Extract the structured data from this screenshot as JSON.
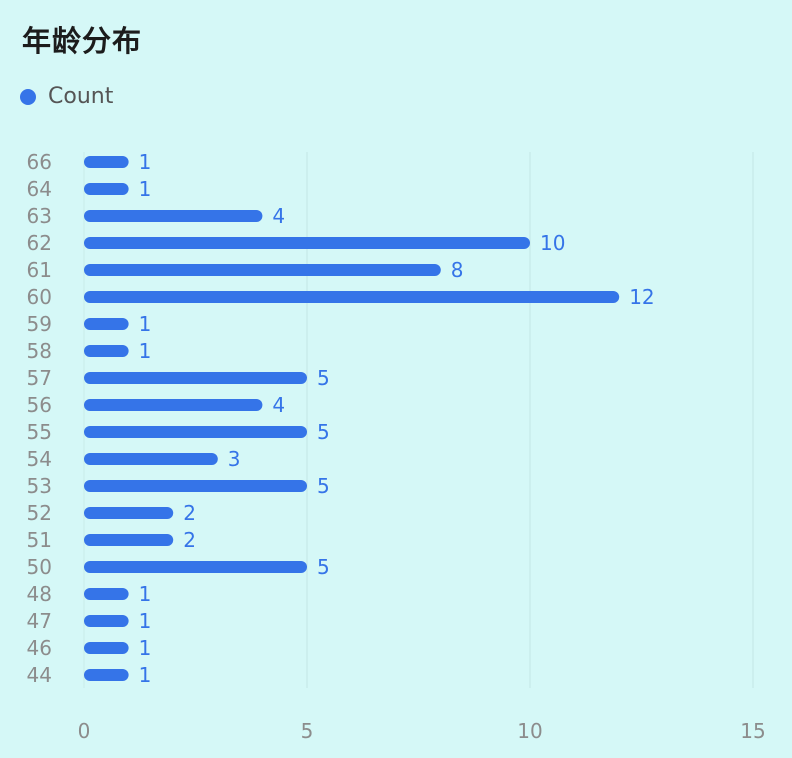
{
  "chart_data": {
    "type": "bar",
    "orientation": "horizontal",
    "title": "年龄分布",
    "categories": [
      "66",
      "64",
      "63",
      "62",
      "61",
      "60",
      "59",
      "58",
      "57",
      "56",
      "55",
      "54",
      "53",
      "52",
      "51",
      "50",
      "48",
      "47",
      "46",
      "44"
    ],
    "series": [
      {
        "name": "Count",
        "color": "#3574e8",
        "values": [
          1,
          1,
          4,
          10,
          8,
          12,
          1,
          1,
          5,
          4,
          5,
          3,
          5,
          2,
          2,
          5,
          1,
          1,
          1,
          1
        ]
      }
    ],
    "xlim": [
      0,
      15
    ],
    "xticks": [
      "0",
      "5",
      "10",
      "15"
    ],
    "grid": true,
    "legend_position": "top-left",
    "data_labels": true
  }
}
